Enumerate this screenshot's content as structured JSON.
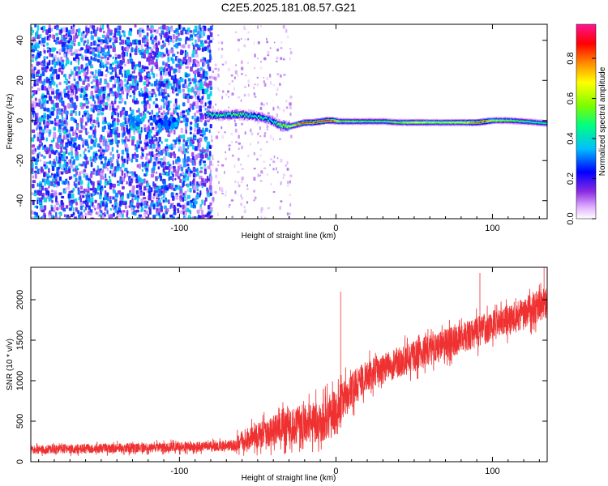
{
  "title": "C2E5.2025.181.08.57.G21",
  "chart_data": [
    {
      "type": "heatmap",
      "xlabel": "Height of straight line (km)",
      "ylabel": "Frequency (Hz)",
      "xlim": [
        -195,
        135
      ],
      "ylim": [
        -49,
        48
      ],
      "xticks": [
        -100,
        0,
        100
      ],
      "yticks": [
        -40,
        -20,
        0,
        20,
        40
      ],
      "colorbar": {
        "label": "Normalized spectral amplitude",
        "range": [
          0,
          0.97
        ],
        "ticks": [
          0.0,
          0.2,
          0.4,
          0.6,
          0.8
        ],
        "colors": [
          "#ffffff",
          "#e0b0ff",
          "#8a2be2",
          "#0000ff",
          "#00bfff",
          "#00ff80",
          "#7cfc00",
          "#ffff00",
          "#ff8c00",
          "#ff0000",
          "#ff1493"
        ]
      },
      "ridge": {
        "x": [
          -83,
          -75,
          -65,
          -55,
          -48,
          -42,
          -36,
          -30,
          -25,
          -20,
          -15,
          -10,
          -6,
          -2,
          2,
          10,
          20,
          30,
          40,
          50,
          60,
          70,
          80,
          90,
          95,
          100,
          110,
          120,
          135
        ],
        "frequency": [
          3,
          2.5,
          3,
          2.5,
          1.5,
          0,
          -2.5,
          -3,
          -2,
          -1,
          -1,
          -0.5,
          0,
          0,
          -0.5,
          -0.5,
          -0.5,
          -0.5,
          -1,
          -1,
          -1,
          -1,
          -1,
          -1,
          -0.5,
          0,
          0,
          -0.5,
          -1.5
        ],
        "amplitude": [
          0.45,
          0.45,
          0.5,
          0.45,
          0.45,
          0.4,
          0.55,
          0.6,
          0.75,
          0.85,
          0.85,
          0.88,
          0.9,
          0.85,
          0.55,
          0.55,
          0.5,
          0.5,
          0.55,
          0.7,
          0.6,
          0.6,
          0.65,
          0.8,
          0.85,
          0.6,
          0.55,
          0.5,
          0.45
        ]
      },
      "noise_regions": [
        {
          "x_range": [
            -195,
            -80
          ],
          "freq_range": [
            -49,
            48
          ],
          "amplitude_range": [
            0.05,
            0.4
          ],
          "description_level": "dense"
        },
        {
          "x_range": [
            -80,
            -30
          ],
          "freq_range": [
            -49,
            48
          ],
          "amplitude_range": [
            0.03,
            0.15
          ],
          "description_level": "sparse"
        }
      ],
      "low_clusters": [
        {
          "x": -127,
          "frequency": -1,
          "amplitude": 0.35
        },
        {
          "x": -112,
          "frequency": -2,
          "amplitude": 0.3
        },
        {
          "x": -105,
          "frequency": -1,
          "amplitude": 0.3
        }
      ]
    },
    {
      "type": "line",
      "xlabel": "Height of straight line (km)",
      "ylabel": "SNR (10 * v/v)",
      "xlim": [
        -195,
        135
      ],
      "ylim": [
        0,
        2400
      ],
      "xticks": [
        -100,
        0,
        100
      ],
      "yticks": [
        0,
        500,
        1000,
        1500,
        2000
      ],
      "grid": false,
      "series": [
        {
          "color": "#ef3131",
          "x": [
            -195,
            -150,
            -100,
            -80,
            -65,
            -62,
            -50,
            -40,
            -30,
            -20,
            -10,
            0,
            10,
            20,
            30,
            50,
            70,
            90,
            110,
            130,
            135
          ],
          "mean": [
            150,
            165,
            180,
            190,
            200,
            250,
            320,
            380,
            420,
            480,
            500,
            600,
            900,
            1050,
            1150,
            1300,
            1450,
            1600,
            1750,
            1920,
            1950
          ],
          "spread": [
            55,
            60,
            60,
            65,
            65,
            120,
            160,
            190,
            220,
            240,
            260,
            300,
            230,
            200,
            190,
            190,
            190,
            190,
            190,
            190,
            190
          ],
          "peaks": [
            {
              "x": 3,
              "y": 2100
            },
            {
              "x": 92,
              "y": 2330
            },
            {
              "x": 133,
              "y": 2400
            }
          ]
        }
      ]
    }
  ]
}
